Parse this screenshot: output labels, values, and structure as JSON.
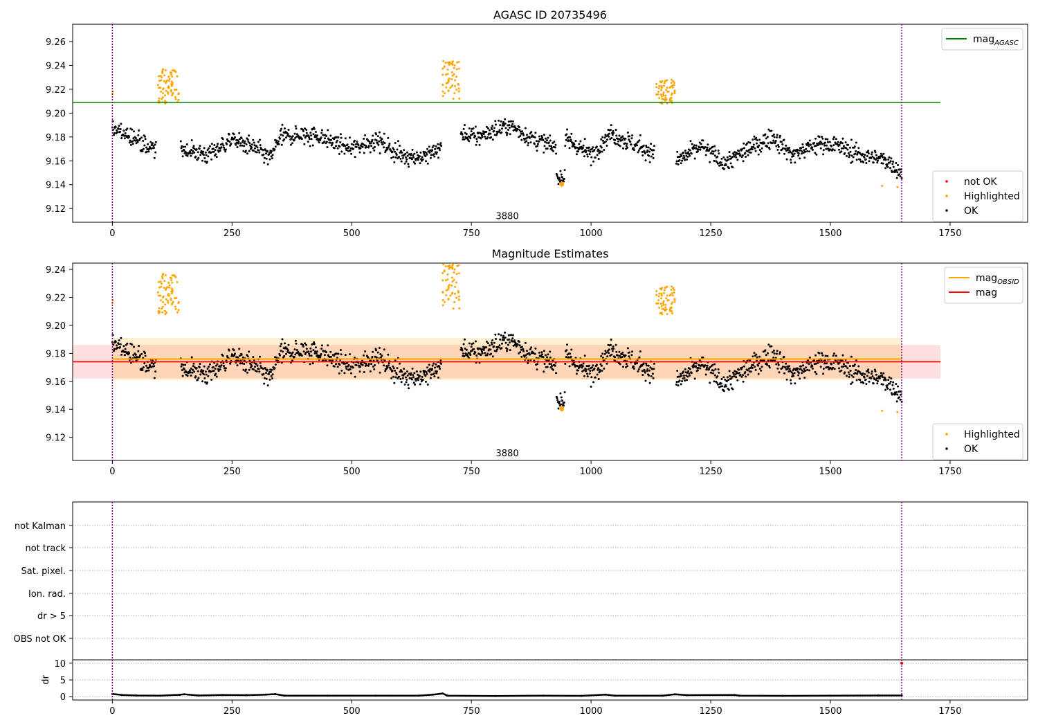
{
  "chart_data": [
    {
      "type": "scatter",
      "title": "AGASC ID 20735496",
      "xlim": [
        -83,
        1912
      ],
      "ylim": [
        9.1085,
        9.2745
      ],
      "xticks": [
        0,
        250,
        500,
        750,
        1000,
        1250,
        1500,
        1750
      ],
      "yticks": [
        9.12,
        9.14,
        9.16,
        9.18,
        9.2,
        9.22,
        9.24,
        9.26
      ],
      "vlines": [
        0,
        1649
      ],
      "annotation": {
        "text": "3880",
        "x": 825,
        "y": 9.111
      },
      "hlines": [
        {
          "name": "mag_AGASC",
          "y": 9.209,
          "x_range": [
            -83,
            1730
          ],
          "color": "#008000"
        }
      ],
      "series": [
        {
          "name": "OK",
          "color": "#000000"
        },
        {
          "name": "Highlighted",
          "color": "#FFA500"
        },
        {
          "name": "not OK",
          "color": "#FF0000"
        }
      ],
      "highlight_clusters": [
        {
          "x_range": [
            95,
            140
          ],
          "y_range": [
            9.208,
            9.237
          ]
        },
        {
          "x_range": [
            690,
            725
          ],
          "y_range": [
            9.212,
            9.245
          ]
        },
        {
          "x_range": [
            1135,
            1175
          ],
          "y_range": [
            9.208,
            9.228
          ]
        },
        {
          "x_range": [
            935,
            942
          ],
          "y_range": [
            9.139,
            9.142
          ]
        }
      ],
      "legend": [
        {
          "label": "mag",
          "sub": "AGASC",
          "kind": "line",
          "color": "#008000",
          "position": "top-right"
        },
        {
          "label": "not OK",
          "kind": "dot",
          "color": "#FF0000",
          "position": "bottom-right"
        },
        {
          "label": "Highlighted",
          "kind": "dot",
          "color": "#FFA500",
          "position": "bottom-right"
        },
        {
          "label": "OK",
          "kind": "dot",
          "color": "#000000",
          "position": "bottom-right"
        }
      ]
    },
    {
      "type": "scatter",
      "title": "Magnitude Estimates",
      "xlim": [
        -83,
        1912
      ],
      "ylim": [
        9.1035,
        9.2445
      ],
      "xticks": [
        0,
        250,
        500,
        750,
        1000,
        1250,
        1500,
        1750
      ],
      "yticks": [
        9.12,
        9.14,
        9.16,
        9.18,
        9.2,
        9.22,
        9.24
      ],
      "vlines": [
        0,
        1649
      ],
      "annotation": {
        "text": "3880",
        "x": 825,
        "y": 9.1065
      },
      "hlines": [
        {
          "name": "mag_OBSID",
          "y": 9.176,
          "x_range": [
            0,
            1649
          ],
          "color": "#FFA500",
          "band": [
            9.161,
            9.191
          ]
        },
        {
          "name": "mag",
          "y": 9.174,
          "x_range": [
            -83,
            1730
          ],
          "color": "#FF0000",
          "band": [
            9.162,
            9.186
          ]
        }
      ],
      "legend": [
        {
          "label": "mag",
          "sub": "OBSID",
          "kind": "line",
          "color": "#FFA500",
          "position": "top-right"
        },
        {
          "label": "mag",
          "kind": "line",
          "color": "#FF0000",
          "position": "top-right"
        },
        {
          "label": "Highlighted",
          "kind": "dot",
          "color": "#FFA500",
          "position": "bottom-right"
        },
        {
          "label": "OK",
          "kind": "dot",
          "color": "#000000",
          "position": "bottom-right"
        }
      ]
    },
    {
      "type": "line",
      "xlim": [
        -83,
        1912
      ],
      "xticks": [
        0,
        250,
        500,
        750,
        1000,
        1250,
        1500,
        1750
      ],
      "vlines": [
        0,
        1649
      ],
      "flag_rows": [
        "not Kalman",
        "not track",
        "Sat. pixel.",
        "Ion. rad.",
        "dr > 5",
        "OBS not OK"
      ],
      "ylabel": "dr",
      "ylim": [
        -1,
        11
      ],
      "yticks": [
        0,
        5,
        10
      ],
      "dr_values": [
        [
          0,
          0.8
        ],
        [
          20,
          0.5
        ],
        [
          50,
          0.35
        ],
        [
          100,
          0.3
        ],
        [
          140,
          0.55
        ],
        [
          150,
          0.7
        ],
        [
          180,
          0.35
        ],
        [
          230,
          0.5
        ],
        [
          280,
          0.45
        ],
        [
          320,
          0.6
        ],
        [
          340,
          0.75
        ],
        [
          360,
          0.3
        ],
        [
          450,
          0.3
        ],
        [
          550,
          0.3
        ],
        [
          640,
          0.3
        ],
        [
          670,
          0.6
        ],
        [
          690,
          0.95
        ],
        [
          700,
          0.3
        ],
        [
          800,
          0.2
        ],
        [
          900,
          0.3
        ],
        [
          980,
          0.25
        ],
        [
          1030,
          0.6
        ],
        [
          1050,
          0.3
        ],
        [
          1150,
          0.3
        ],
        [
          1175,
          0.7
        ],
        [
          1200,
          0.45
        ],
        [
          1300,
          0.5
        ],
        [
          1310,
          0.3
        ],
        [
          1400,
          0.25
        ],
        [
          1500,
          0.3
        ],
        [
          1600,
          0.35
        ],
        [
          1649,
          0.35
        ]
      ],
      "not_ok_points": [
        [
          1649,
          10
        ]
      ]
    }
  ]
}
